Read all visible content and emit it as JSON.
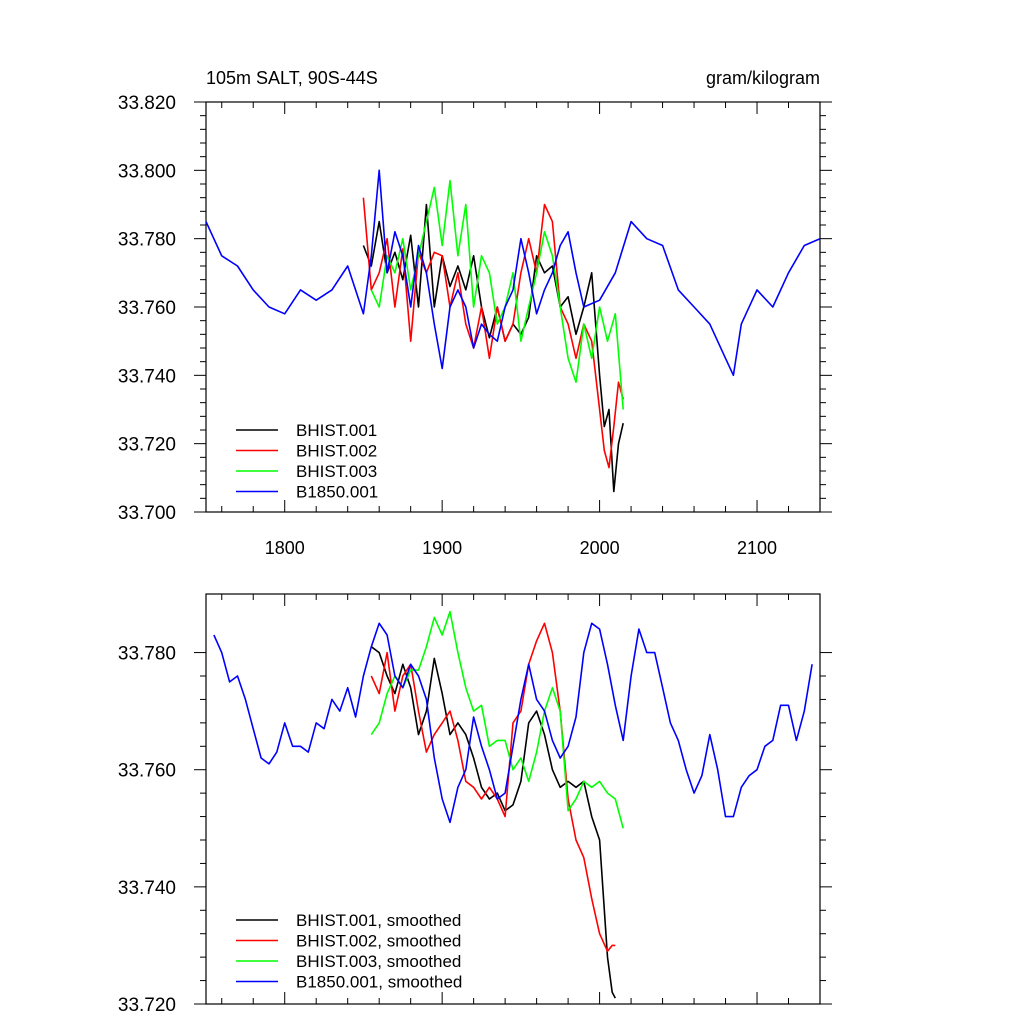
{
  "chart_data": [
    {
      "type": "line",
      "title_left": "105m SALT, 90S-44S",
      "title_right": "gram/kilogram",
      "xlim": [
        1750,
        2140
      ],
      "ylim": [
        33.7,
        33.82
      ],
      "x_ticks": [
        1800,
        1900,
        2000,
        2100
      ],
      "y_ticks": [
        33.7,
        33.72,
        33.74,
        33.76,
        33.78,
        33.8,
        33.82
      ],
      "y_tick_labels": [
        "33.700",
        "33.720",
        "33.740",
        "33.760",
        "33.780",
        "33.800",
        "33.820"
      ],
      "x_tick_labels": [
        "1800",
        "1900",
        "2000",
        "2100"
      ],
      "legend_position": "bottom-left",
      "series": [
        {
          "name": "BHIST.001",
          "color": "#000000",
          "x": [
            1850,
            1855,
            1860,
            1865,
            1870,
            1875,
            1880,
            1885,
            1890,
            1895,
            1900,
            1905,
            1910,
            1915,
            1920,
            1925,
            1930,
            1935,
            1940,
            1945,
            1950,
            1955,
            1960,
            1965,
            1970,
            1975,
            1980,
            1985,
            1990,
            1995,
            2000,
            2003,
            2006,
            2009,
            2012,
            2015
          ],
          "y": [
            33.778,
            33.772,
            33.785,
            33.77,
            33.776,
            33.768,
            33.781,
            33.76,
            33.79,
            33.76,
            33.775,
            33.766,
            33.772,
            33.765,
            33.775,
            33.76,
            33.751,
            33.76,
            33.75,
            33.755,
            33.752,
            33.757,
            33.775,
            33.77,
            33.772,
            33.76,
            33.763,
            33.752,
            33.76,
            33.77,
            33.74,
            33.725,
            33.73,
            33.706,
            33.72,
            33.726
          ]
        },
        {
          "name": "BHIST.002",
          "color": "#ff0000",
          "x": [
            1850,
            1855,
            1860,
            1865,
            1870,
            1875,
            1880,
            1885,
            1890,
            1895,
            1900,
            1905,
            1910,
            1915,
            1920,
            1925,
            1930,
            1935,
            1940,
            1945,
            1950,
            1955,
            1960,
            1965,
            1970,
            1975,
            1980,
            1985,
            1990,
            1995,
            2000,
            2003,
            2006,
            2009,
            2012,
            2015
          ],
          "y": [
            33.792,
            33.765,
            33.77,
            33.78,
            33.76,
            33.777,
            33.75,
            33.776,
            33.77,
            33.776,
            33.775,
            33.76,
            33.77,
            33.755,
            33.748,
            33.76,
            33.745,
            33.76,
            33.75,
            33.755,
            33.77,
            33.78,
            33.77,
            33.79,
            33.785,
            33.76,
            33.755,
            33.745,
            33.755,
            33.75,
            33.73,
            33.718,
            33.713,
            33.725,
            33.738,
            33.733
          ]
        },
        {
          "name": "BHIST.003",
          "color": "#00ff00",
          "x": [
            1855,
            1860,
            1865,
            1870,
            1875,
            1880,
            1885,
            1890,
            1895,
            1900,
            1905,
            1910,
            1915,
            1920,
            1925,
            1930,
            1935,
            1940,
            1945,
            1950,
            1955,
            1960,
            1965,
            1970,
            1975,
            1980,
            1985,
            1990,
            1995,
            2000,
            2005,
            2010,
            2015
          ],
          "y": [
            33.765,
            33.76,
            33.775,
            33.77,
            33.78,
            33.765,
            33.775,
            33.785,
            33.795,
            33.778,
            33.797,
            33.775,
            33.79,
            33.76,
            33.775,
            33.77,
            33.755,
            33.76,
            33.77,
            33.75,
            33.76,
            33.77,
            33.782,
            33.775,
            33.76,
            33.745,
            33.738,
            33.755,
            33.745,
            33.76,
            33.75,
            33.758,
            33.73
          ]
        },
        {
          "name": "B1850.001",
          "color": "#0000ff",
          "x": [
            1750,
            1760,
            1770,
            1780,
            1790,
            1800,
            1810,
            1820,
            1830,
            1840,
            1850,
            1855,
            1860,
            1865,
            1870,
            1875,
            1880,
            1885,
            1890,
            1895,
            1900,
            1905,
            1910,
            1915,
            1920,
            1925,
            1930,
            1935,
            1940,
            1945,
            1950,
            1955,
            1960,
            1965,
            1970,
            1975,
            1980,
            1985,
            1990,
            2000,
            2010,
            2020,
            2030,
            2040,
            2050,
            2060,
            2070,
            2080,
            2085,
            2090,
            2100,
            2110,
            2120,
            2130,
            2140
          ],
          "y": [
            33.785,
            33.775,
            33.772,
            33.765,
            33.76,
            33.758,
            33.765,
            33.762,
            33.765,
            33.772,
            33.758,
            33.775,
            33.8,
            33.77,
            33.782,
            33.775,
            33.76,
            33.778,
            33.77,
            33.755,
            33.742,
            33.76,
            33.765,
            33.76,
            33.748,
            33.755,
            33.752,
            33.75,
            33.76,
            33.765,
            33.78,
            33.77,
            33.758,
            33.765,
            33.77,
            33.778,
            33.782,
            33.77,
            33.76,
            33.762,
            33.77,
            33.785,
            33.78,
            33.778,
            33.765,
            33.76,
            33.755,
            33.745,
            33.74,
            33.755,
            33.765,
            33.76,
            33.77,
            33.778,
            33.78
          ]
        }
      ]
    },
    {
      "type": "line",
      "xlim": [
        1750,
        2140
      ],
      "ylim": [
        33.72,
        33.79
      ],
      "x_ticks": [
        1800,
        1900,
        2000,
        2100
      ],
      "y_ticks": [
        33.72,
        33.74,
        33.76,
        33.78
      ],
      "y_tick_labels": [
        "33.720",
        "33.740",
        "33.760",
        "33.780"
      ],
      "legend_position": "bottom-left",
      "series": [
        {
          "name": "BHIST.001, smoothed",
          "color": "#000000",
          "x": [
            1855,
            1860,
            1865,
            1870,
            1875,
            1880,
            1885,
            1890,
            1895,
            1900,
            1905,
            1910,
            1915,
            1920,
            1925,
            1930,
            1935,
            1940,
            1945,
            1950,
            1955,
            1960,
            1965,
            1970,
            1975,
            1980,
            1985,
            1990,
            1995,
            2000,
            2005,
            2008,
            2010
          ],
          "y": [
            33.781,
            33.78,
            33.776,
            33.773,
            33.778,
            33.774,
            33.766,
            33.77,
            33.779,
            33.773,
            33.766,
            33.768,
            33.766,
            33.762,
            33.757,
            33.755,
            33.756,
            33.753,
            33.754,
            33.758,
            33.768,
            33.77,
            33.766,
            33.76,
            33.757,
            33.758,
            33.757,
            33.758,
            33.752,
            33.748,
            33.728,
            33.722,
            33.721
          ]
        },
        {
          "name": "BHIST.002, smoothed",
          "color": "#ff0000",
          "x": [
            1855,
            1860,
            1865,
            1870,
            1875,
            1880,
            1885,
            1890,
            1895,
            1900,
            1905,
            1910,
            1915,
            1920,
            1925,
            1930,
            1935,
            1940,
            1945,
            1950,
            1955,
            1960,
            1965,
            1970,
            1975,
            1980,
            1985,
            1990,
            1995,
            2000,
            2005,
            2008,
            2010
          ],
          "y": [
            33.776,
            33.773,
            33.78,
            33.77,
            33.776,
            33.778,
            33.77,
            33.763,
            33.766,
            33.768,
            33.77,
            33.765,
            33.758,
            33.757,
            33.755,
            33.757,
            33.755,
            33.752,
            33.768,
            33.77,
            33.778,
            33.782,
            33.785,
            33.78,
            33.77,
            33.755,
            33.748,
            33.745,
            33.738,
            33.732,
            33.729,
            33.73,
            33.73
          ]
        },
        {
          "name": "BHIST.003, smoothed",
          "color": "#00ff00",
          "x": [
            1855,
            1860,
            1865,
            1870,
            1875,
            1880,
            1885,
            1890,
            1895,
            1900,
            1905,
            1910,
            1915,
            1920,
            1925,
            1930,
            1935,
            1940,
            1945,
            1950,
            1955,
            1960,
            1965,
            1970,
            1975,
            1980,
            1985,
            1990,
            1995,
            2000,
            2005,
            2010,
            2015
          ],
          "y": [
            33.766,
            33.768,
            33.773,
            33.776,
            33.774,
            33.777,
            33.777,
            33.781,
            33.786,
            33.783,
            33.787,
            33.78,
            33.774,
            33.77,
            33.771,
            33.764,
            33.765,
            33.765,
            33.76,
            33.762,
            33.758,
            33.763,
            33.77,
            33.774,
            33.77,
            33.753,
            33.755,
            33.758,
            33.757,
            33.758,
            33.756,
            33.755,
            33.75
          ]
        },
        {
          "name": "B1850.001, smoothed",
          "color": "#0000ff",
          "x": [
            1755,
            1760,
            1765,
            1770,
            1775,
            1780,
            1785,
            1790,
            1795,
            1800,
            1805,
            1810,
            1815,
            1820,
            1825,
            1830,
            1835,
            1840,
            1845,
            1850,
            1855,
            1860,
            1865,
            1870,
            1875,
            1880,
            1885,
            1890,
            1895,
            1900,
            1905,
            1910,
            1915,
            1920,
            1925,
            1930,
            1935,
            1940,
            1945,
            1950,
            1955,
            1960,
            1965,
            1970,
            1975,
            1980,
            1985,
            1990,
            1995,
            2000,
            2005,
            2010,
            2015,
            2020,
            2025,
            2030,
            2035,
            2040,
            2045,
            2050,
            2055,
            2060,
            2065,
            2070,
            2075,
            2080,
            2085,
            2090,
            2095,
            2100,
            2105,
            2110,
            2115,
            2120,
            2125,
            2130,
            2135
          ],
          "y": [
            33.783,
            33.78,
            33.775,
            33.776,
            33.772,
            33.767,
            33.762,
            33.761,
            33.763,
            33.768,
            33.764,
            33.764,
            33.763,
            33.768,
            33.767,
            33.772,
            33.77,
            33.774,
            33.769,
            33.776,
            33.781,
            33.785,
            33.783,
            33.776,
            33.774,
            33.778,
            33.776,
            33.772,
            33.762,
            33.755,
            33.751,
            33.757,
            33.76,
            33.769,
            33.764,
            33.76,
            33.755,
            33.756,
            33.764,
            33.772,
            33.778,
            33.772,
            33.77,
            33.765,
            33.762,
            33.764,
            33.769,
            33.78,
            33.785,
            33.784,
            33.778,
            33.771,
            33.765,
            33.776,
            33.784,
            33.78,
            33.78,
            33.774,
            33.768,
            33.765,
            33.76,
            33.756,
            33.759,
            33.766,
            33.76,
            33.752,
            33.752,
            33.757,
            33.759,
            33.76,
            33.764,
            33.765,
            33.771,
            33.771,
            33.765,
            33.77,
            33.778
          ]
        }
      ]
    }
  ]
}
